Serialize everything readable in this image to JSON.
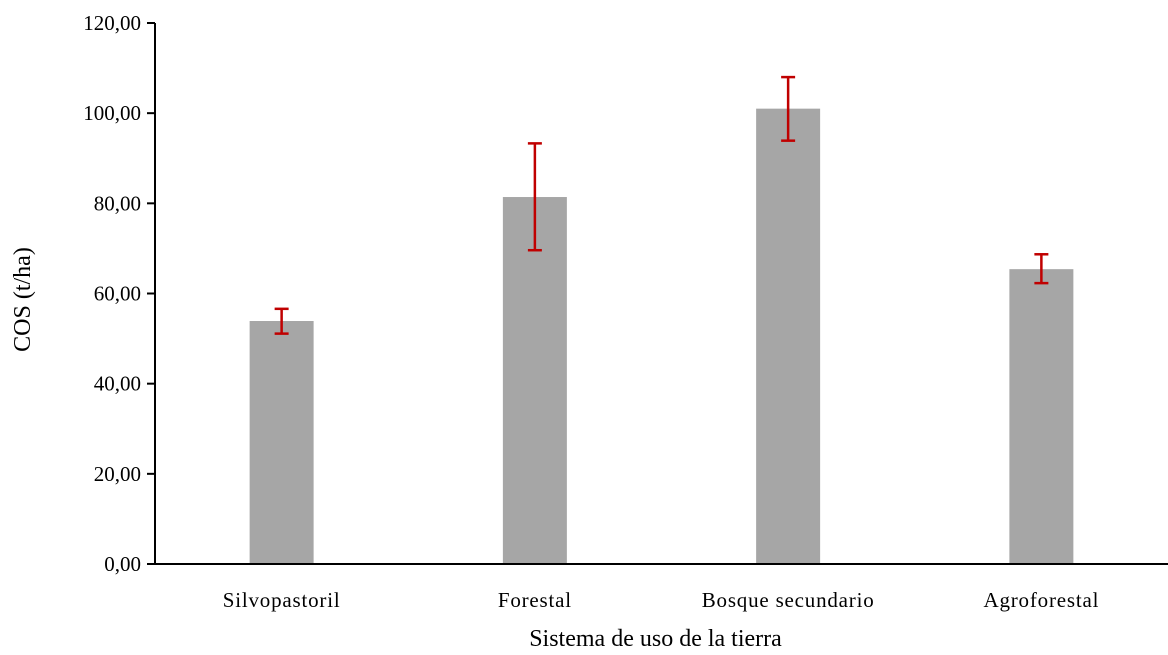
{
  "chart_data": {
    "type": "bar",
    "title": "",
    "xlabel": "Sistema de uso de la tierra",
    "ylabel": "COS (t/ha)",
    "categories": [
      "Silvopastoril",
      "Forestal",
      "Bosque secundario",
      "Agroforestal"
    ],
    "values": [
      53.9,
      81.4,
      101.0,
      65.4
    ],
    "error_low": [
      51.1,
      69.6,
      93.9,
      62.3
    ],
    "error_high": [
      56.6,
      93.3,
      108.0,
      68.7
    ],
    "ylim": [
      0,
      120
    ],
    "yticks": [
      0,
      20,
      40,
      60,
      80,
      100,
      120
    ],
    "ytick_labels": [
      "0,00",
      "20,00",
      "40,00",
      "60,00",
      "80,00",
      "100,00",
      "120,00"
    ],
    "grid": false,
    "legend": "none",
    "colors": {
      "bar": "#a6a6a6",
      "error_bar": "#c00000",
      "axis": "#000000"
    }
  }
}
